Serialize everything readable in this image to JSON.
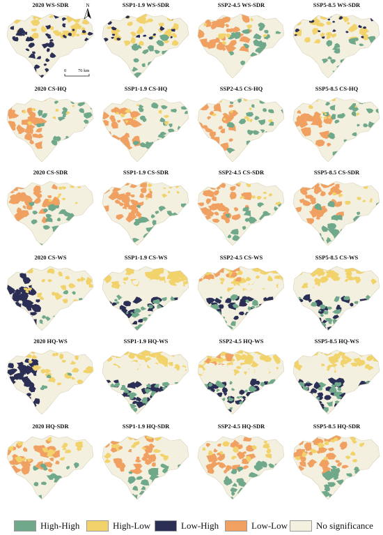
{
  "columns": [
    "2020",
    "SSP1-1.9",
    "SSP2-4.5",
    "SSP5-8.5"
  ],
  "rows": [
    {
      "titles": [
        "2020 WS-SDR",
        "SSP1-1.9 WS-SDR",
        "SSP2-4.5 WS-SDR",
        "SSP5-8.5 WS-SDR"
      ],
      "patterns": [
        "ws2020",
        "mixedA",
        "mixedB",
        "mixedA"
      ]
    },
    {
      "titles": [
        "2020  CS-HQ",
        "SSP1-1.9 CS-HQ",
        "SSP2-4.5 CS-HQ",
        "SSP5-8.5 CS-HQ"
      ],
      "patterns": [
        "cshq",
        "cshq",
        "cshq",
        "cshq"
      ]
    },
    {
      "titles": [
        "2020  CS-SDR",
        "SSP1-1.9 CS-SDR",
        "SSP2-4.5 CS-SDR",
        "SSP5-8.5 CS-SDR"
      ],
      "patterns": [
        "cssdr",
        "cssdr",
        "cssdr",
        "cssdr"
      ]
    },
    {
      "titles": [
        "2020  CS-WS",
        "SSP1-1.9 CS-WS",
        "SSP2-4.5 CS-WS",
        "SSP5-8.5 CS-WS"
      ],
      "patterns": [
        "lowhighW",
        "band1",
        "band2",
        "band3"
      ]
    },
    {
      "titles": [
        "2020 HQ-WS",
        "SSP1-1.9 HQ-WS",
        "SSP2-4.5 HQ-WS",
        "SSP5-8.5 HQ-WS"
      ],
      "patterns": [
        "lowhighW",
        "band1",
        "band2",
        "band3"
      ]
    },
    {
      "titles": [
        "2020 HQ-SDR",
        "SSP1-1.9 HQ-SDR",
        "SSP2-4.5 HQ-SDR",
        "SSP5-8.5 HQ-SDR"
      ],
      "patterns": [
        "hqsdr",
        "hqsdr",
        "hqsdr",
        "hqsdr"
      ]
    }
  ],
  "north_label": "N",
  "scale": {
    "zero": "0",
    "distance": "76 km"
  },
  "legend": [
    {
      "label": "High-High",
      "color": "#6fa88a"
    },
    {
      "label": "High-Low",
      "color": "#f2d36b"
    },
    {
      "label": "Low-High",
      "color": "#2b2f55"
    },
    {
      "label": "Low-Low",
      "color": "#f0a060"
    },
    {
      "label": "No significance",
      "color": "#f3f0e0"
    }
  ]
}
